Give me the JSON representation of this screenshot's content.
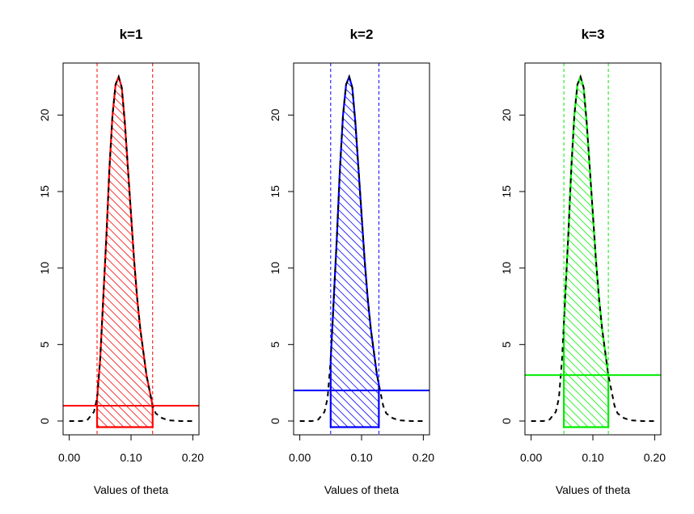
{
  "chart_data": [
    {
      "type": "line",
      "title": "k=1",
      "xlabel": "Values of theta",
      "ylabel": "",
      "xlim": [
        -0.01,
        0.21
      ],
      "ylim": [
        -0.9,
        23.4
      ],
      "xticks": [
        "0.00",
        "0.10",
        "0.20"
      ],
      "yticks": [
        "0",
        "5",
        "10",
        "15",
        "20"
      ],
      "color": "#ff0000",
      "threshold": 1,
      "interval": [
        0.045,
        0.135
      ],
      "x": [
        0.0,
        0.02,
        0.03,
        0.04,
        0.045,
        0.05,
        0.055,
        0.06,
        0.065,
        0.07,
        0.075,
        0.08,
        0.085,
        0.09,
        0.095,
        0.1,
        0.105,
        0.11,
        0.115,
        0.12,
        0.125,
        0.13,
        0.135,
        0.14,
        0.15,
        0.16,
        0.18,
        0.2
      ],
      "y": [
        0.0,
        0.0,
        0.1,
        0.6,
        1.5,
        4.0,
        8.0,
        12.0,
        16.5,
        20.0,
        22.0,
        22.5,
        21.8,
        19.5,
        16.5,
        13.5,
        10.5,
        8.0,
        6.0,
        4.5,
        3.0,
        2.0,
        1.0,
        0.5,
        0.2,
        0.05,
        0.0,
        0.0
      ],
      "hatched": true,
      "grid": false
    },
    {
      "type": "line",
      "title": "k=2",
      "xlabel": "Values of theta",
      "ylabel": "",
      "xlim": [
        -0.01,
        0.21
      ],
      "ylim": [
        -0.9,
        23.4
      ],
      "xticks": [
        "0.00",
        "0.10",
        "0.20"
      ],
      "yticks": [
        "0",
        "5",
        "10",
        "15",
        "20"
      ],
      "color": "#0000ff",
      "threshold": 2,
      "interval": [
        0.05,
        0.128
      ],
      "x": [
        0.0,
        0.02,
        0.03,
        0.04,
        0.045,
        0.05,
        0.055,
        0.06,
        0.065,
        0.07,
        0.075,
        0.08,
        0.085,
        0.09,
        0.095,
        0.1,
        0.105,
        0.11,
        0.115,
        0.12,
        0.125,
        0.13,
        0.135,
        0.14,
        0.15,
        0.16,
        0.18,
        0.2
      ],
      "y": [
        0.0,
        0.0,
        0.1,
        0.6,
        1.5,
        4.0,
        8.0,
        12.0,
        16.5,
        20.0,
        22.0,
        22.5,
        21.8,
        19.5,
        16.5,
        13.5,
        10.5,
        8.0,
        6.0,
        4.5,
        3.0,
        2.0,
        1.0,
        0.5,
        0.2,
        0.05,
        0.0,
        0.0
      ],
      "hatched": true,
      "grid": false
    },
    {
      "type": "line",
      "title": "k=3",
      "xlabel": "Values of theta",
      "ylabel": "",
      "xlim": [
        -0.01,
        0.21
      ],
      "ylim": [
        -0.9,
        23.4
      ],
      "xticks": [
        "0.00",
        "0.10",
        "0.20"
      ],
      "yticks": [
        "0",
        "5",
        "10",
        "15",
        "20"
      ],
      "color": "#00ee00",
      "threshold": 3,
      "interval": [
        0.053,
        0.125
      ],
      "x": [
        0.0,
        0.02,
        0.03,
        0.04,
        0.045,
        0.05,
        0.055,
        0.06,
        0.065,
        0.07,
        0.075,
        0.08,
        0.085,
        0.09,
        0.095,
        0.1,
        0.105,
        0.11,
        0.115,
        0.12,
        0.125,
        0.13,
        0.135,
        0.14,
        0.15,
        0.16,
        0.18,
        0.2
      ],
      "y": [
        0.0,
        0.0,
        0.1,
        0.6,
        1.5,
        4.0,
        8.0,
        12.0,
        16.5,
        20.0,
        22.0,
        22.5,
        21.8,
        19.5,
        16.5,
        13.5,
        10.5,
        8.0,
        6.0,
        4.5,
        3.0,
        2.0,
        1.0,
        0.5,
        0.2,
        0.05,
        0.0,
        0.0
      ],
      "hatched": true,
      "grid": false
    }
  ]
}
